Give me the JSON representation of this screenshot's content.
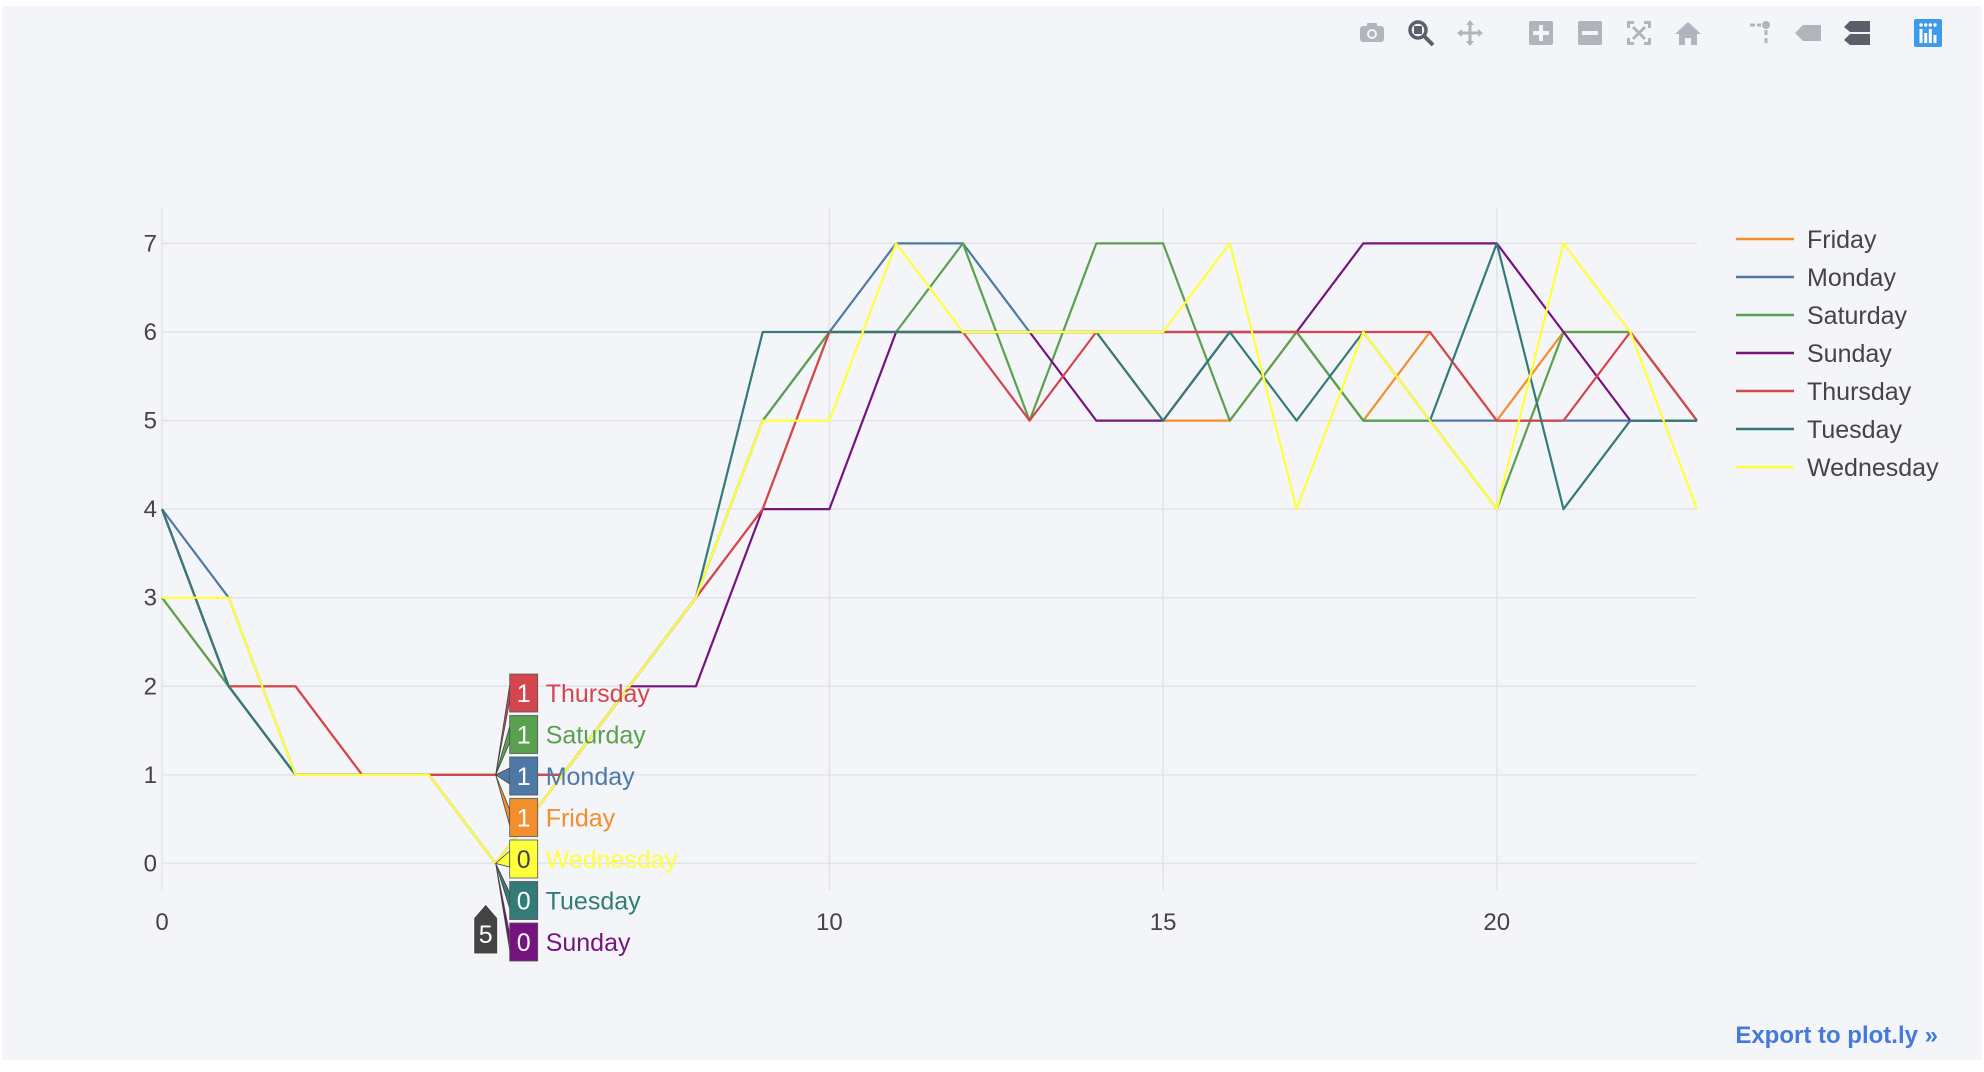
{
  "toolbar": {
    "buttons": [
      {
        "name": "camera-icon",
        "icon": "camera",
        "active": false
      },
      {
        "name": "zoom-icon",
        "icon": "zoom",
        "active": true
      },
      {
        "name": "pan-icon",
        "icon": "pan",
        "active": false
      },
      {
        "name": "zoom-in-icon",
        "icon": "plus",
        "active": false
      },
      {
        "name": "zoom-out-icon",
        "icon": "minus",
        "active": false
      },
      {
        "name": "autoscale-icon",
        "icon": "autoscale",
        "active": false
      },
      {
        "name": "home-icon",
        "icon": "home",
        "active": false
      },
      {
        "name": "spike-lines-icon",
        "icon": "spikes",
        "active": false
      },
      {
        "name": "hover-closest-icon",
        "icon": "tag",
        "active": false
      },
      {
        "name": "hover-compare-icon",
        "icon": "compare",
        "active": true
      },
      {
        "name": "plotly-logo-icon",
        "icon": "plotly",
        "active": false
      }
    ]
  },
  "export_link": "Export to plot.ly »",
  "colors": {
    "background": "#f4f5f8",
    "grid": "#e2e3e8",
    "axis_text": "#444444",
    "export": "#447adb",
    "plotly_logo": "#3d9be9"
  },
  "chart_data": {
    "type": "line",
    "title": "",
    "xlabel": "",
    "ylabel": "",
    "xlim": [
      0,
      23
    ],
    "ylim": [
      -0.3,
      7.4
    ],
    "x_ticks": [
      0,
      10,
      15,
      20
    ],
    "y_ticks": [
      0,
      1,
      2,
      3,
      4,
      5,
      6,
      7
    ],
    "grid": true,
    "legend_position": "right",
    "x": [
      0,
      1,
      2,
      3,
      4,
      5,
      6,
      7,
      8,
      9,
      10,
      11,
      12,
      13,
      14,
      15,
      16,
      17,
      18,
      19,
      20,
      21,
      22,
      23
    ],
    "series": [
      {
        "name": "Friday",
        "color": "#f28e2b",
        "values": [
          3,
          2,
          2,
          1,
          1,
          1,
          1,
          2,
          3,
          4,
          6,
          6,
          6,
          6,
          6,
          5,
          5,
          6,
          5,
          6,
          5,
          6,
          6,
          5
        ]
      },
      {
        "name": "Monday",
        "color": "#4e79a7",
        "values": [
          4,
          3,
          1,
          1,
          1,
          1,
          1,
          2,
          3,
          5,
          6,
          7,
          7,
          6,
          6,
          6,
          6,
          6,
          5,
          5,
          5,
          5,
          5,
          5
        ]
      },
      {
        "name": "Saturday",
        "color": "#59a14f",
        "values": [
          3,
          2,
          1,
          1,
          1,
          1,
          1,
          2,
          3,
          5,
          6,
          6,
          7,
          5,
          7,
          7,
          5,
          6,
          5,
          5,
          4,
          6,
          6,
          5
        ]
      },
      {
        "name": "Sunday",
        "color": "#76137f",
        "values": [
          4,
          2,
          1,
          1,
          1,
          0,
          1,
          2,
          2,
          4,
          4,
          6,
          6,
          6,
          5,
          5,
          6,
          6,
          7,
          7,
          7,
          6,
          5,
          5
        ]
      },
      {
        "name": "Thursday",
        "color": "#d3464e",
        "values": [
          4,
          2,
          2,
          1,
          1,
          1,
          1,
          2,
          3,
          4,
          6,
          6,
          6,
          5,
          6,
          6,
          6,
          6,
          6,
          6,
          5,
          5,
          6,
          5
        ]
      },
      {
        "name": "Tuesday",
        "color": "#327b78",
        "values": [
          4,
          2,
          1,
          1,
          1,
          0,
          1,
          2,
          3,
          6,
          6,
          6,
          6,
          6,
          6,
          5,
          6,
          5,
          6,
          5,
          7,
          4,
          5,
          5
        ]
      },
      {
        "name": "Wednesday",
        "color": "#ffff3c",
        "values": [
          3,
          3,
          1,
          1,
          1,
          0,
          1,
          2,
          3,
          5,
          5,
          7,
          6,
          6,
          6,
          6,
          7,
          4,
          6,
          5,
          4,
          7,
          6,
          4
        ]
      }
    ],
    "hover": {
      "x": 5,
      "x_label": "5",
      "labels": [
        {
          "series": "Thursday",
          "value": "1",
          "name": "Thursday"
        },
        {
          "series": "Saturday",
          "value": "1",
          "name": "Saturday"
        },
        {
          "series": "Monday",
          "value": "1",
          "name": "Monday"
        },
        {
          "series": "Friday",
          "value": "1",
          "name": "Friday"
        },
        {
          "series": "Wednesday",
          "value": "0",
          "name": "Wednesday"
        },
        {
          "series": "Tuesday",
          "value": "0",
          "name": "Tuesday"
        },
        {
          "series": "Sunday",
          "value": "0",
          "name": "Sunday"
        }
      ]
    }
  }
}
